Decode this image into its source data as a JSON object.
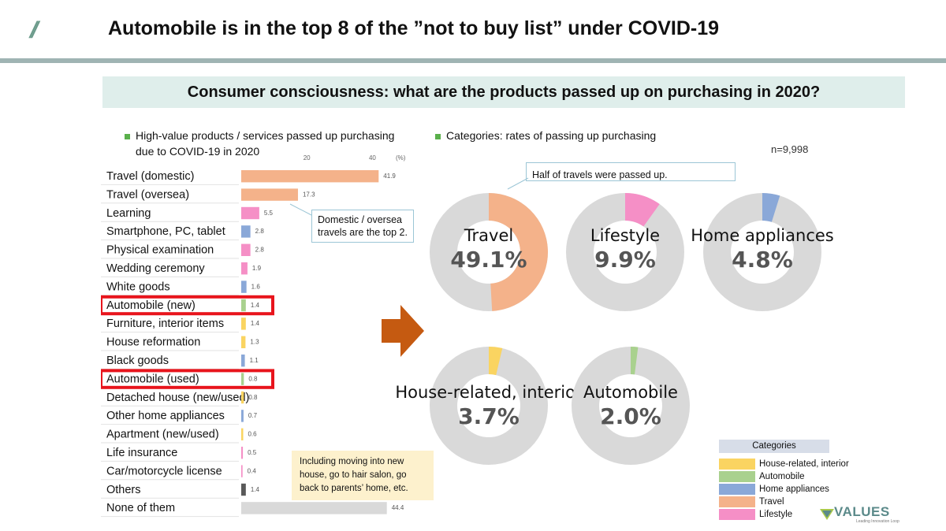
{
  "header": {
    "slashes": "//",
    "title": "Automobile is in the top 8 of the ”not to buy list” under COVID-19",
    "subtitle": "Consumer consciousness: what are the products passed up on purchasing in 2020?"
  },
  "legend_notes": {
    "left_line1": "High-value products / services passed up purchasing",
    "left_line2": "due to COVID-19 in 2020",
    "right": "Categories: rates of passing up purchasing",
    "n": "n=9,998"
  },
  "callouts": {
    "half_travel": "Half of travels were passed up.",
    "domestic_line1": "Domestic / oversea",
    "domestic_line2": "travels are the top 2.",
    "moving_line1": "Including moving into new",
    "moving_line2": "house, go to hair salon, go",
    "moving_line3": "back to parents’ home, etc."
  },
  "colors": {
    "travel": "#f4b28a",
    "lifestyle": "#f58fc6",
    "home_appliances": "#8aa8d8",
    "house_related": "#fad461",
    "automobile": "#a9d18e",
    "others": "#595959",
    "none": "#d9d9d9",
    "highlight": "#e8141c",
    "donut_bg": "#d9d9d9"
  },
  "chart_data": [
    {
      "type": "bar",
      "orientation": "horizontal",
      "xlim": [
        0,
        50
      ],
      "ticks": [
        "20",
        "40"
      ],
      "unit_label": "(%)",
      "categories": [
        "Travel (domestic)",
        "Travel (oversea)",
        "Learning",
        "Smartphone, PC, tablet",
        "Physical examination",
        "Wedding ceremony",
        "White goods",
        "Automobile (new)",
        "Furniture, interior items",
        "House reformation",
        "Black goods",
        "Automobile (used)",
        "Detached house (new/used)",
        "Other home appliances",
        "Apartment (new/used)",
        "Life insurance",
        "Car/motorcycle license",
        "Others",
        "None of them"
      ],
      "values": [
        41.9,
        17.3,
        5.5,
        2.8,
        2.8,
        1.9,
        1.6,
        1.4,
        1.4,
        1.3,
        1.1,
        0.8,
        0.8,
        0.7,
        0.6,
        0.5,
        0.4,
        1.4,
        44.4
      ],
      "value_labels": [
        "41.9",
        "17.3",
        "5.5",
        "2.8",
        "2.8",
        "1.9",
        "1.6",
        "1.4",
        "1.4",
        "1.3",
        "1.1",
        "0.8",
        "0.8",
        "0.7",
        "0.6",
        "0.5",
        "0.4",
        "1.4",
        "44.4"
      ],
      "bar_categories": [
        "travel",
        "travel",
        "lifestyle",
        "home_appliances",
        "lifestyle",
        "lifestyle",
        "home_appliances",
        "automobile",
        "house_related",
        "house_related",
        "home_appliances",
        "automobile",
        "house_related",
        "home_appliances",
        "house_related",
        "lifestyle",
        "lifestyle",
        "others",
        "none"
      ],
      "highlighted": [
        "Automobile (new)",
        "Automobile (used)"
      ]
    },
    {
      "type": "pie",
      "style": "donut",
      "slices": [
        {
          "name": "Travel",
          "value": 49.1,
          "label": "49.1%",
          "color_key": "travel"
        },
        {
          "name": "Lifestyle",
          "value": 9.9,
          "label": "9.9%",
          "color_key": "lifestyle"
        },
        {
          "name": "Home appliances",
          "value": 4.8,
          "label": "4.8%",
          "color_key": "home_appliances"
        },
        {
          "name": "House-related, interior",
          "value": 3.7,
          "label": "3.7%",
          "color_key": "house_related"
        },
        {
          "name": "Automobile",
          "value": 2.0,
          "label": "2.0%",
          "color_key": "automobile"
        }
      ]
    }
  ],
  "category_legend": {
    "title": "Categories",
    "items": [
      {
        "label": "House-related, interior",
        "color_key": "house_related"
      },
      {
        "label": "Automobile",
        "color_key": "automobile"
      },
      {
        "label": "Home appliances",
        "color_key": "home_appliances"
      },
      {
        "label": "Travel",
        "color_key": "travel"
      },
      {
        "label": "Lifestyle",
        "color_key": "lifestyle"
      }
    ]
  },
  "logo": {
    "name": "VALUES",
    "tagline": "Leading Innovation Loop"
  }
}
